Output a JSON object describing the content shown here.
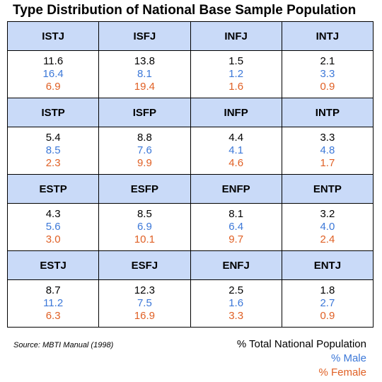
{
  "chart_data": {
    "type": "table",
    "title": "Type Distribution of National Base Sample Population",
    "rows": [
      {
        "types": [
          "ISTJ",
          "ISFJ",
          "INFJ",
          "INTJ"
        ],
        "total": [
          "11.6",
          "13.8",
          "1.5",
          "2.1"
        ],
        "male": [
          "16.4",
          "8.1",
          "1.2",
          "3.3"
        ],
        "female": [
          "6.9",
          "19.4",
          "1.6",
          "0.9"
        ]
      },
      {
        "types": [
          "ISTP",
          "ISFP",
          "INFP",
          "INTP"
        ],
        "total": [
          "5.4",
          "8.8",
          "4.4",
          "3.3"
        ],
        "male": [
          "8.5",
          "7.6",
          "4.1",
          "4.8"
        ],
        "female": [
          "2.3",
          "9.9",
          "4.6",
          "1.7"
        ]
      },
      {
        "types": [
          "ESTP",
          "ESFP",
          "ENFP",
          "ENTP"
        ],
        "total": [
          "4.3",
          "8.5",
          "8.1",
          "3.2"
        ],
        "male": [
          "5.6",
          "6.9",
          "6.4",
          "4.0"
        ],
        "female": [
          "3.0",
          "10.1",
          "9.7",
          "2.4"
        ]
      },
      {
        "types": [
          "ESTJ",
          "ESFJ",
          "ENFJ",
          "ENTJ"
        ],
        "total": [
          "8.7",
          "12.3",
          "2.5",
          "1.8"
        ],
        "male": [
          "11.2",
          "7.5",
          "1.6",
          "2.7"
        ],
        "female": [
          "6.3",
          "16.9",
          "3.3",
          "0.9"
        ]
      }
    ],
    "source": "Source: MBTI Manual (1998)",
    "legend": {
      "total": "%  Total National Population",
      "male": "% Male",
      "female": "% Female"
    },
    "colors": {
      "header_bg": "#c9daf8",
      "total": "#000000",
      "male": "#3c78d8",
      "female": "#e06025"
    }
  }
}
